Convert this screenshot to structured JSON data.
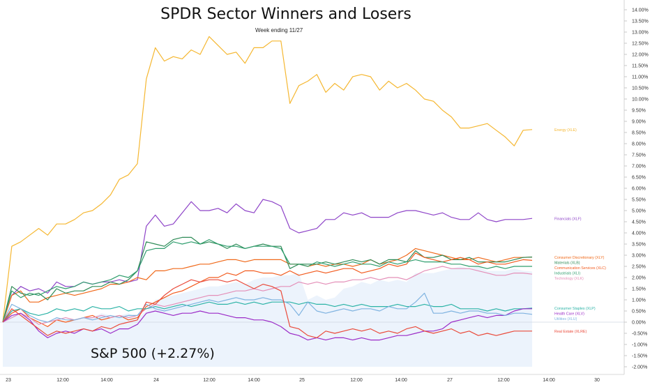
{
  "chart_data": {
    "type": "line",
    "title": "SPDR Sector Winners and Losers",
    "subtitle": "Week ending 11/27",
    "benchmark_label": "S&P 500 (+2.27%)",
    "xlabel": "",
    "ylabel": "",
    "ylim": [
      -2.0,
      14.0
    ],
    "y_ticks": [
      "14.00%",
      "13.50%",
      "13.00%",
      "12.50%",
      "12.00%",
      "11.50%",
      "11.00%",
      "10.50%",
      "10.00%",
      "9.50%",
      "9.00%",
      "8.50%",
      "8.00%",
      "7.50%",
      "7.00%",
      "6.50%",
      "6.00%",
      "5.50%",
      "5.00%",
      "4.50%",
      "4.00%",
      "3.50%",
      "3.00%",
      "2.50%",
      "2.00%",
      "1.50%",
      "1.00%",
      "0.50%",
      "0.00%",
      "-0.50%",
      "-1.00%",
      "-1.50%",
      "-2.00%"
    ],
    "x_ticks": [
      "23",
      "12:00",
      "14:00",
      "24",
      "12:00",
      "14:00",
      "25",
      "12:00",
      "14:00",
      "27",
      "12:00",
      "14:00",
      "30"
    ],
    "grid": false,
    "legend": "right-end labels",
    "benchmark": {
      "name": "S&P 500",
      "values": [
        0.0,
        0.3,
        0.4,
        0.2,
        -0.1,
        -0.2,
        0.2,
        0.0,
        0.1,
        0.2,
        0.2,
        0.4,
        0.3,
        0.3,
        0.4,
        0.2,
        0.5,
        1.0,
        1.1,
        1.2,
        1.3,
        1.4,
        1.5,
        1.6,
        1.6,
        1.7,
        1.8,
        1.7,
        1.9,
        2.0,
        2.0,
        2.1,
        2.1,
        2.2,
        1.0,
        1.2,
        1.0,
        1.1,
        1.5,
        1.6,
        1.8,
        1.7,
        1.9,
        1.8,
        1.9,
        1.8,
        2.2,
        2.2,
        2.2,
        2.3,
        2.4,
        2.5,
        2.4,
        2.5,
        2.3,
        2.3,
        2.3,
        2.4,
        2.3,
        2.27
      ]
    },
    "series": [
      {
        "name": "Energy (XLE)",
        "color": "#f5b731",
        "values": [
          0.0,
          3.4,
          3.6,
          3.9,
          4.2,
          3.9,
          4.4,
          4.4,
          4.6,
          4.9,
          5.0,
          5.3,
          5.7,
          6.4,
          6.6,
          7.1,
          10.9,
          12.3,
          11.7,
          11.9,
          11.8,
          12.2,
          12.0,
          12.8,
          12.4,
          12.0,
          12.1,
          11.6,
          12.3,
          12.3,
          12.6,
          12.6,
          9.8,
          10.6,
          10.8,
          11.1,
          10.3,
          10.7,
          10.4,
          11.0,
          11.1,
          11.0,
          10.4,
          10.8,
          10.5,
          10.7,
          10.4,
          10.0,
          9.9,
          9.5,
          9.2,
          8.7,
          8.7,
          8.8,
          8.9,
          8.6,
          8.3,
          7.9,
          8.6,
          8.63
        ]
      },
      {
        "name": "Financials (XLF)",
        "color": "#8e44c8",
        "values": [
          0.0,
          1.2,
          1.6,
          1.4,
          1.5,
          1.3,
          1.8,
          1.6,
          1.6,
          1.8,
          1.7,
          1.8,
          1.8,
          1.9,
          1.8,
          1.9,
          4.3,
          4.8,
          4.3,
          4.4,
          4.9,
          5.4,
          5.0,
          5.0,
          5.1,
          4.9,
          5.3,
          5.0,
          4.9,
          5.5,
          5.4,
          5.2,
          4.2,
          4.0,
          4.1,
          4.2,
          4.6,
          4.6,
          4.9,
          4.8,
          4.9,
          4.7,
          4.7,
          4.7,
          4.9,
          5.0,
          5.0,
          4.9,
          4.8,
          4.9,
          4.7,
          4.6,
          4.6,
          4.9,
          4.6,
          4.5,
          4.6,
          4.6,
          4.6,
          4.65
        ]
      },
      {
        "name": "Consumer Discretionary (XLY)",
        "color": "#f0691a",
        "values": [
          0.0,
          1.2,
          1.4,
          0.9,
          0.9,
          1.1,
          1.2,
          1.3,
          1.2,
          1.3,
          1.4,
          1.5,
          1.7,
          1.7,
          1.8,
          2.0,
          1.9,
          2.3,
          2.3,
          2.4,
          2.4,
          2.5,
          2.6,
          2.6,
          2.7,
          2.8,
          2.8,
          2.7,
          2.8,
          2.8,
          2.8,
          2.8,
          2.6,
          2.6,
          2.5,
          2.6,
          2.5,
          2.6,
          2.6,
          2.5,
          2.6,
          2.8,
          2.6,
          2.7,
          2.8,
          3.0,
          3.3,
          3.2,
          3.1,
          3.0,
          2.9,
          2.8,
          2.8,
          2.9,
          2.8,
          2.7,
          2.8,
          2.9,
          2.9,
          2.92
        ]
      },
      {
        "name": "Materials (XLB)",
        "color": "#2e8b57",
        "values": [
          0.0,
          1.6,
          1.3,
          1.2,
          1.3,
          1.0,
          1.5,
          1.3,
          1.4,
          1.4,
          1.6,
          1.6,
          1.8,
          1.7,
          1.9,
          2.3,
          3.6,
          3.5,
          3.4,
          3.7,
          3.8,
          3.8,
          3.5,
          3.6,
          3.5,
          3.3,
          3.5,
          3.3,
          3.4,
          3.5,
          3.4,
          3.4,
          2.4,
          2.6,
          2.6,
          2.6,
          2.7,
          2.6,
          2.7,
          2.8,
          2.7,
          2.8,
          2.6,
          2.8,
          2.8,
          2.7,
          3.2,
          2.9,
          2.9,
          3.0,
          2.8,
          2.8,
          2.9,
          2.7,
          2.7,
          2.7,
          2.7,
          2.8,
          2.9,
          2.92
        ]
      },
      {
        "name": "Communication Services (XLC)",
        "color": "#f25a1d",
        "values": [
          0.0,
          0.4,
          0.6,
          0.2,
          0.0,
          -0.2,
          0.1,
          0.0,
          0.1,
          0.2,
          0.3,
          0.1,
          0.2,
          0.3,
          0.1,
          0.2,
          0.7,
          0.9,
          1.1,
          1.3,
          1.4,
          1.6,
          1.8,
          2.0,
          2.0,
          2.2,
          2.1,
          2.3,
          2.3,
          2.2,
          2.2,
          2.1,
          2.3,
          2.1,
          2.2,
          2.3,
          2.2,
          2.3,
          2.4,
          2.4,
          2.2,
          2.3,
          2.4,
          2.6,
          2.5,
          2.6,
          3.1,
          2.9,
          2.8,
          2.7,
          2.8,
          2.9,
          2.8,
          2.6,
          2.7,
          2.6,
          2.6,
          2.7,
          2.8,
          2.77
        ]
      },
      {
        "name": "Industrials (XLI)",
        "color": "#2f9e6e",
        "values": [
          0.0,
          1.4,
          1.1,
          1.3,
          1.2,
          1.4,
          1.6,
          1.5,
          1.6,
          1.8,
          1.7,
          1.8,
          1.9,
          2.1,
          2.0,
          2.3,
          3.2,
          3.3,
          3.3,
          3.6,
          3.5,
          3.6,
          3.5,
          3.7,
          3.5,
          3.4,
          3.4,
          3.3,
          3.4,
          3.4,
          3.4,
          3.3,
          2.6,
          2.6,
          2.5,
          2.7,
          2.6,
          2.5,
          2.6,
          2.7,
          2.6,
          2.6,
          2.5,
          2.7,
          2.6,
          2.7,
          2.8,
          2.7,
          2.7,
          2.7,
          2.6,
          2.6,
          2.5,
          2.5,
          2.4,
          2.5,
          2.4,
          2.5,
          2.5,
          2.5
        ]
      },
      {
        "name": "Technology (XLK)",
        "color": "#e48fb8",
        "values": [
          0.0,
          0.2,
          0.4,
          0.2,
          -0.1,
          0.0,
          0.1,
          0.2,
          0.1,
          0.2,
          0.2,
          0.3,
          0.2,
          0.3,
          0.2,
          0.3,
          0.6,
          0.8,
          0.7,
          0.8,
          0.9,
          1.0,
          1.1,
          1.2,
          1.2,
          1.3,
          1.4,
          1.4,
          1.5,
          1.4,
          1.5,
          1.6,
          1.6,
          1.8,
          1.7,
          1.8,
          1.7,
          1.8,
          1.8,
          1.9,
          1.9,
          2.0,
          1.9,
          2.0,
          2.0,
          1.9,
          2.1,
          2.3,
          2.4,
          2.5,
          2.4,
          2.4,
          2.4,
          2.3,
          2.2,
          2.1,
          2.1,
          2.2,
          2.2,
          2.15
        ]
      },
      {
        "name": "Consumer Staples (XLP)",
        "color": "#2bb3a6",
        "values": [
          0.0,
          0.5,
          0.6,
          0.4,
          0.3,
          0.4,
          0.6,
          0.5,
          0.6,
          0.5,
          0.7,
          0.6,
          0.6,
          0.7,
          0.5,
          0.6,
          0.6,
          0.7,
          0.6,
          0.7,
          0.8,
          0.7,
          0.8,
          0.9,
          0.8,
          0.8,
          0.9,
          0.8,
          0.9,
          0.8,
          0.9,
          0.9,
          0.9,
          0.8,
          0.9,
          0.8,
          0.8,
          0.7,
          0.8,
          0.7,
          0.8,
          0.7,
          0.7,
          0.7,
          0.8,
          0.7,
          0.7,
          0.8,
          0.7,
          0.7,
          0.8,
          0.6,
          0.6,
          0.6,
          0.5,
          0.6,
          0.5,
          0.6,
          0.6,
          0.63
        ]
      },
      {
        "name": "Health Care (XLV)",
        "color": "#9b2bc7",
        "values": [
          0.0,
          0.3,
          0.4,
          0.1,
          -0.4,
          -0.7,
          -0.5,
          -0.4,
          -0.5,
          -0.3,
          -0.4,
          -0.3,
          -0.5,
          -0.3,
          -0.3,
          -0.1,
          0.4,
          0.5,
          0.4,
          0.3,
          0.4,
          0.4,
          0.5,
          0.4,
          0.4,
          0.3,
          0.2,
          0.2,
          0.1,
          0.1,
          0.0,
          -0.2,
          -0.5,
          -0.6,
          -0.8,
          -0.7,
          -0.8,
          -0.7,
          -0.7,
          -0.8,
          -0.7,
          -0.8,
          -0.8,
          -0.7,
          -0.6,
          -0.6,
          -0.5,
          -0.4,
          -0.4,
          -0.3,
          0.0,
          0.1,
          0.2,
          0.3,
          0.2,
          0.3,
          0.3,
          0.5,
          0.6,
          0.6
        ]
      },
      {
        "name": "Utilities (XLU)",
        "color": "#7fb3e0",
        "values": [
          0.0,
          0.8,
          0.6,
          0.3,
          0.1,
          0.0,
          0.2,
          0.1,
          0.1,
          0.2,
          0.1,
          0.2,
          0.3,
          0.2,
          0.3,
          0.3,
          0.8,
          0.6,
          0.5,
          0.6,
          0.7,
          0.8,
          0.9,
          1.0,
          0.9,
          1.0,
          1.1,
          1.0,
          1.0,
          1.1,
          1.0,
          1.0,
          0.8,
          0.3,
          0.9,
          0.5,
          0.4,
          0.5,
          0.6,
          0.5,
          0.6,
          0.6,
          0.5,
          0.7,
          0.6,
          0.6,
          0.9,
          1.3,
          0.4,
          0.4,
          0.5,
          0.4,
          0.5,
          0.5,
          0.4,
          0.4,
          0.3,
          0.4,
          0.4,
          0.35
        ]
      },
      {
        "name": "Real Estate (XLRE)",
        "color": "#ea4a3a",
        "values": [
          0.0,
          0.6,
          0.3,
          0.0,
          -0.3,
          -0.6,
          -0.4,
          -0.5,
          -0.4,
          -0.3,
          -0.4,
          -0.2,
          -0.3,
          -0.1,
          0.0,
          0.1,
          0.9,
          0.8,
          1.2,
          1.5,
          1.7,
          1.9,
          1.8,
          1.9,
          1.9,
          1.8,
          1.9,
          1.7,
          1.5,
          1.7,
          1.6,
          1.4,
          -0.2,
          -0.3,
          -0.6,
          -0.7,
          -0.4,
          -0.5,
          -0.4,
          -0.3,
          -0.4,
          -0.3,
          -0.5,
          -0.4,
          -0.5,
          -0.3,
          -0.2,
          -0.4,
          -0.5,
          -0.4,
          -0.3,
          -0.5,
          -0.4,
          -0.6,
          -0.5,
          -0.6,
          -0.5,
          -0.4,
          -0.4,
          -0.4
        ]
      }
    ]
  }
}
